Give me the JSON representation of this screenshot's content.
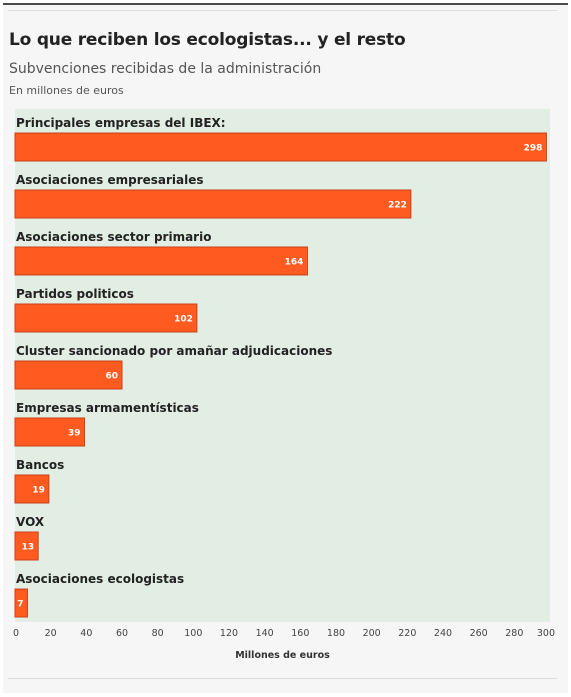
{
  "header": {
    "title": "Lo que reciben los ecologistas... y el resto",
    "subtitle": "Subvenciones recibidas de la administración",
    "note": "En millones de euros"
  },
  "colors": {
    "bar": "#ff5a1f",
    "bar_stroke": "#c8431a",
    "plot_bg": "#e2eee3"
  },
  "chart_data": {
    "type": "bar",
    "orientation": "horizontal",
    "categories": [
      "Principales empresas del IBEX:",
      "Asociaciones empresariales",
      "Asociaciones sector primario",
      "Partidos politicos",
      "Cluster sancionado por amañar adjudicaciones",
      "Empresas armamentísticas",
      "Bancos",
      "VOX",
      "Asociaciones ecologistas"
    ],
    "values": [
      298,
      222,
      164,
      102,
      60,
      39,
      19,
      13,
      7
    ],
    "value_labels": [
      "298",
      "222",
      "164",
      "102",
      "60",
      "39",
      "19",
      "13",
      "7"
    ],
    "xlim": [
      0,
      300
    ],
    "xticks": [
      0,
      20,
      40,
      60,
      80,
      100,
      120,
      140,
      160,
      180,
      200,
      220,
      240,
      260,
      280,
      300
    ],
    "xtick_labels": [
      "0",
      "20",
      "40",
      "60",
      "80",
      "100",
      "120",
      "140",
      "160",
      "180",
      "200",
      "220",
      "240",
      "260",
      "280",
      "300"
    ],
    "xlabel": "Millones de euros",
    "grid": false,
    "legend": "none"
  }
}
